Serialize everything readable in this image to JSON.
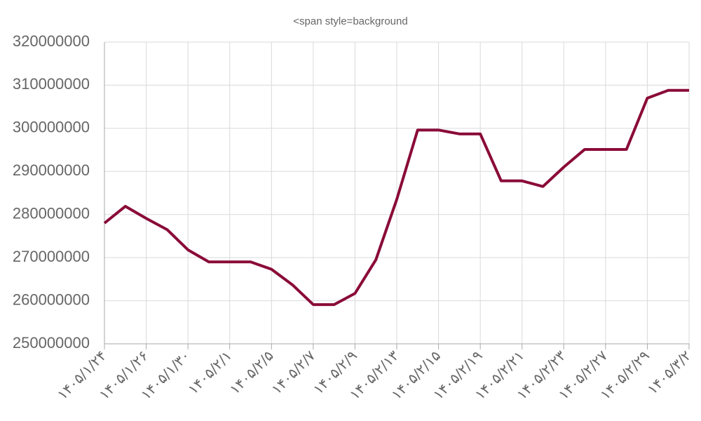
{
  "chart_data": {
    "type": "line",
    "title": "<span style=background",
    "categories": [
      "۱۴۰۵/۱/۲۴",
      null,
      "۱۴۰۵/۱/۲۶",
      null,
      "۱۴۰۵/۱/۳۰",
      null,
      "۱۴۰۵/۲/۱",
      null,
      "۱۴۰۵/۲/۵",
      null,
      "۱۴۰۵/۲/۷",
      null,
      "۱۴۰۵/۲/۹",
      null,
      "۱۴۰۵/۲/۱۳",
      null,
      "۱۴۰۵/۲/۱۵",
      null,
      "۱۴۰۵/۲/۱۹",
      null,
      "۱۴۰۵/۲/۲۱",
      null,
      "۱۴۰۵/۲/۲۳",
      null,
      "۱۴۰۵/۲/۲۷",
      null,
      "۱۴۰۵/۲/۲۹",
      null,
      "۱۴۰۵/۳/۲"
    ],
    "values": [
      278000000,
      281900000,
      279100000,
      276500000,
      271800000,
      269000000,
      269000000,
      269000000,
      267300000,
      263700000,
      259100000,
      259100000,
      261700000,
      269500000,
      283500000,
      299600000,
      299600000,
      298700000,
      298700000,
      287800000,
      287800000,
      286500000,
      291000000,
      295100000,
      295100000,
      295100000,
      307000000,
      308800000,
      308800000
    ],
    "color": "#8a0b38",
    "ylim": [
      250000000,
      320000000
    ],
    "yticks": [
      250000000,
      260000000,
      270000000,
      280000000,
      290000000,
      300000000,
      310000000,
      320000000
    ],
    "grid": true
  }
}
